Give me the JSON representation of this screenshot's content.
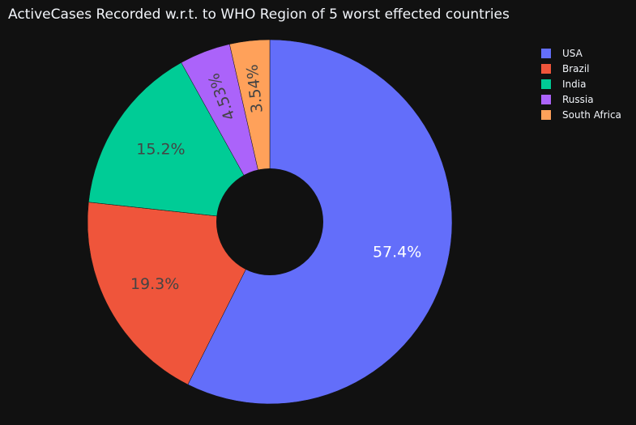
{
  "chart_data": {
    "type": "pie",
    "title": "ActiveCases Recorded w.r.t. to WHO Region of 5 worst effected countries",
    "hole": true,
    "legend_position": "top-right",
    "slices": [
      {
        "label": "USA",
        "value": 57.4,
        "text": "57.4%",
        "color": "#636efa",
        "text_color": "#ffffff"
      },
      {
        "label": "Brazil",
        "value": 19.3,
        "text": "19.3%",
        "color": "#ef553b",
        "text_color": "#444444"
      },
      {
        "label": "India",
        "value": 15.2,
        "text": "15.2%",
        "color": "#00cc96",
        "text_color": "#444444"
      },
      {
        "label": "Russia",
        "value": 4.53,
        "text": "4.53%",
        "color": "#ab63fa",
        "text_color": "#444444"
      },
      {
        "label": "South Africa",
        "value": 3.54,
        "text": "3.54%",
        "color": "#ffa15a",
        "text_color": "#444444"
      }
    ]
  }
}
